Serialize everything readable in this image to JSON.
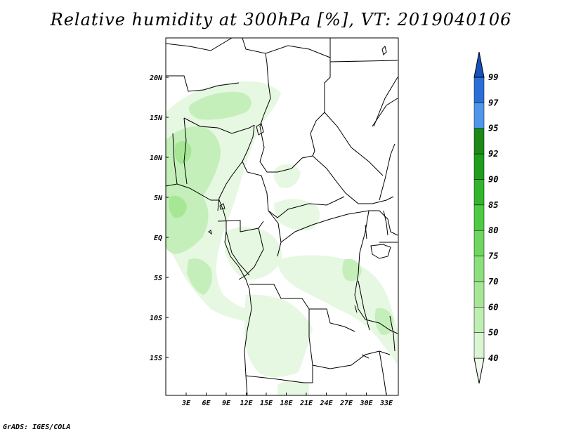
{
  "title": "Relative humidity at 300hPa [%], VT: 2019040106",
  "credit": "GrADS: IGES/COLA",
  "map": {
    "region": "Central and West Africa",
    "lat_labels": [
      "20N",
      "15N",
      "10N",
      "5N",
      "EQ",
      "5S",
      "10S",
      "15S"
    ],
    "lon_labels": [
      "3E",
      "6E",
      "9E",
      "12E",
      "15E",
      "18E",
      "21E",
      "24E",
      "27E",
      "30E",
      "33E"
    ]
  },
  "colorbar": {
    "levels": [
      "40",
      "50",
      "60",
      "70",
      "75",
      "80",
      "85",
      "90",
      "92",
      "95",
      "97",
      "99"
    ],
    "colors": [
      "#f0fbee",
      "#d9f5d1",
      "#bfeeb2",
      "#a6e796",
      "#8ce07b",
      "#6fd660",
      "#4fca44",
      "#33b52b",
      "#1f9e1c",
      "#1b8a18",
      "#4f97ea",
      "#2a6fd8",
      "#1751bb"
    ]
  },
  "fill_colors": {
    "light": "#e6f8e1",
    "mid": "#c5efba",
    "strong": "#a6e796"
  }
}
